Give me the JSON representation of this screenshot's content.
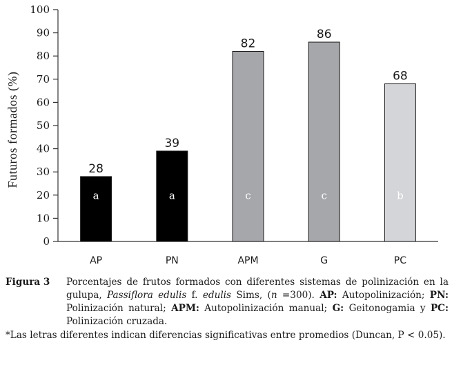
{
  "chart_data": {
    "type": "bar",
    "categories": [
      "AP",
      "PN",
      "APM",
      "G",
      "PC"
    ],
    "values": [
      28,
      39,
      82,
      86,
      68
    ],
    "value_labels": [
      "28",
      "39",
      "82",
      "86",
      "68"
    ],
    "significance_letters": [
      "a",
      "a",
      "c",
      "c",
      "b"
    ],
    "bar_colors": [
      "#000000",
      "#000000",
      "#a6a7ab",
      "#a6a7ab",
      "#d4d5d8"
    ],
    "letter_colors": [
      "#ffffff",
      "#ffffff",
      "#ffffff",
      "#ffffff",
      "#ffffff"
    ],
    "ylabel": "Futuros formados (%)",
    "xlabel": "",
    "ylim": [
      0,
      100
    ],
    "yticks": [
      0,
      10,
      20,
      30,
      40,
      50,
      60,
      70,
      80,
      90,
      100
    ],
    "grid": false,
    "legend": "none"
  },
  "caption": {
    "figure_label": "Figura 3",
    "text_1": "Porcentajes de frutos formados con diferentes sistemas de polinización en la  gulupa, ",
    "species": "Passiflora edulis",
    "text_2": " f. ",
    "form": "edulis",
    "text_3": " Sims, (",
    "n_symbol": "n",
    "text_4": " =300).  ",
    "abbr_ap": "AP:",
    "def_ap": " Autopolinización; ",
    "abbr_pn": "PN:",
    "def_pn": " Polinización natural; ",
    "abbr_apm": "APM:",
    "def_apm": " Autopolinización manual; ",
    "abbr_g": "G:",
    "def_g": " Geitonogamia y ",
    "abbr_pc": "PC:",
    "def_pc": " Polinización cruzada.",
    "note": "*Las letras diferentes indican diferencias significativas entre promedios (Duncan, P < 0.05)."
  }
}
